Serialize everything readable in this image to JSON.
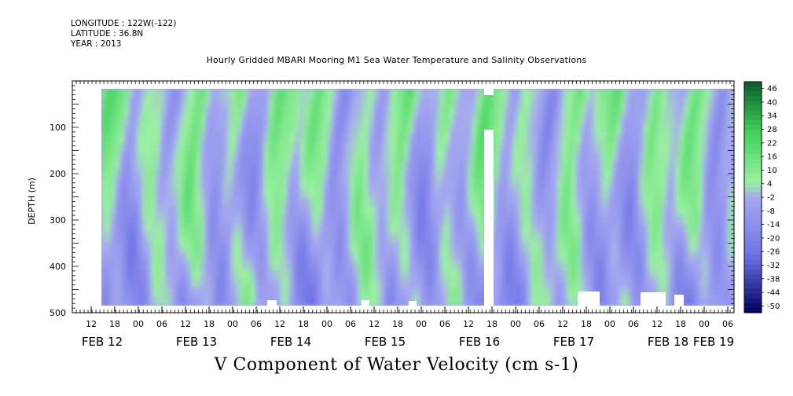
{
  "header": {
    "longitude": "LONGITUDE : 122W(-122)",
    "latitude": "LATITUDE : 36.8N",
    "year": "YEAR : 2013"
  },
  "chart_data": {
    "type": "heatmap",
    "title": "Hourly Gridded MBARI Mooring M1 Sea Water Temperature and Salinity Observations",
    "bottom_title": "V Component of Water Velocity (cm s-1)",
    "ylabel": "DEPTH (m)",
    "ylim": [
      500,
      0
    ],
    "yticks": [
      100,
      200,
      300,
      400,
      500
    ],
    "x_hour_ticks": [
      "12",
      "18",
      "00",
      "06",
      "12",
      "18",
      "00",
      "06",
      "12",
      "18",
      "00",
      "06",
      "12",
      "18",
      "00",
      "06",
      "12",
      "18",
      "00",
      "06",
      "12",
      "18",
      "00",
      "06",
      "12",
      "18",
      "00",
      "06"
    ],
    "x_date_labels": [
      "FEB 12",
      "FEB 13",
      "FEB 14",
      "FEB 15",
      "FEB 16",
      "FEB 17",
      "FEB 18",
      "FEB 19"
    ],
    "xlim_hours": [
      0,
      168
    ],
    "colorbar": {
      "levels": [
        46,
        40,
        34,
        28,
        22,
        16,
        10,
        4,
        -2,
        -8,
        -14,
        -20,
        -26,
        -32,
        -38,
        -44,
        -50
      ],
      "labels": [
        "46",
        "40",
        "34",
        "28",
        "22",
        "16",
        "10",
        "4",
        "-2",
        "-8",
        "-14",
        "-20",
        "-26",
        "-32",
        "-38",
        "-44",
        "-50"
      ]
    },
    "colors": {
      "strong_positive": "#0c5a2a",
      "positive": "#3fd25a",
      "weak_positive": "#9cf0a2",
      "weak_negative": "#a6a8f0",
      "negative": "#6e72e6",
      "strong_negative": "#00005e"
    }
  }
}
